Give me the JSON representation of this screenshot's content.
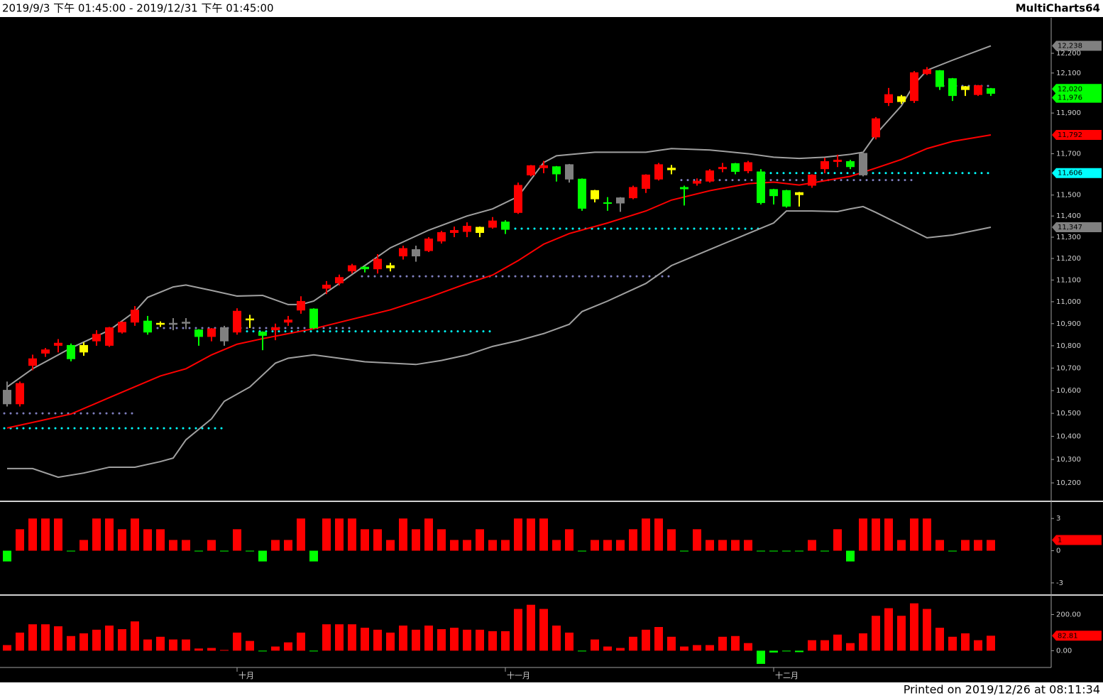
{
  "header": {
    "range": "2019/9/3 下午 01:45:00 - 2019/12/31 下午 01:45:00",
    "brand": "MultiCharts64"
  },
  "footer": "Printed on 2019/12/26 at 08:11:34",
  "chart_data": [
    {
      "type": "candlestick",
      "log_scale": true,
      "categories": [
        null,
        null,
        null,
        null,
        null,
        null,
        null,
        null,
        null,
        null,
        null,
        null,
        null,
        null,
        null,
        null,
        null,
        null,
        "十月",
        null,
        null,
        null,
        null,
        null,
        null,
        null,
        null,
        null,
        null,
        null,
        null,
        null,
        null,
        null,
        null,
        null,
        null,
        null,
        null,
        "十一月",
        null,
        null,
        null,
        null,
        null,
        null,
        null,
        null,
        null,
        null,
        null,
        null,
        null,
        null,
        null,
        null,
        null,
        null,
        null,
        null,
        "十二月",
        null,
        null,
        null,
        null,
        null,
        null,
        null,
        null,
        null,
        null,
        null,
        null,
        null,
        null,
        null,
        null,
        null
      ],
      "open": [
        10540,
        10540,
        10710,
        10765,
        10800,
        10800,
        10770,
        10820,
        10800,
        10860,
        10905,
        10910,
        10895,
        10900,
        10905,
        10870,
        10840,
        10820,
        10860,
        10915,
        10860,
        10870,
        10905,
        10960,
        10965,
        11060,
        11085,
        11140,
        11158,
        11150,
        11155,
        11210,
        11210,
        11235,
        11280,
        11320,
        11325,
        11320,
        11345,
        11370,
        11415,
        11595,
        11630,
        11635,
        11645,
        11575,
        11520,
        11462,
        11460,
        11485,
        11530,
        11575,
        11620,
        11535,
        11555,
        11565,
        11625,
        11650,
        11615,
        11610,
        11525,
        11520,
        11500,
        11545,
        11625,
        11660,
        11660,
        11700,
        11780,
        11950,
        11955,
        11960,
        12095,
        12110,
        12070,
        12015,
        11990,
        12020
      ],
      "high": [
        10640,
        10640,
        10760,
        10790,
        10830,
        10810,
        10815,
        10870,
        10885,
        10910,
        10980,
        10935,
        10910,
        10925,
        10925,
        10875,
        10880,
        10890,
        10970,
        10940,
        10865,
        10900,
        10935,
        11025,
        10970,
        11095,
        11125,
        11175,
        11165,
        11220,
        11180,
        11260,
        11260,
        11300,
        11330,
        11350,
        11370,
        11350,
        11395,
        11380,
        11560,
        11645,
        11665,
        11640,
        11650,
        11580,
        11525,
        11490,
        11490,
        11545,
        11600,
        11655,
        11645,
        11545,
        11580,
        11625,
        11655,
        11655,
        11665,
        11625,
        11530,
        11525,
        11515,
        11600,
        11680,
        11695,
        11670,
        11710,
        11880,
        12025,
        11990,
        12110,
        12130,
        12115,
        12075,
        12035,
        12040,
        12025
      ],
      "low": [
        10530,
        10530,
        10690,
        10750,
        10770,
        10730,
        10755,
        10800,
        10795,
        10855,
        10890,
        10850,
        10885,
        10870,
        10875,
        10800,
        10820,
        10800,
        10850,
        10880,
        10780,
        10825,
        10890,
        10945,
        10875,
        11035,
        11075,
        11130,
        11135,
        11130,
        11140,
        11195,
        11185,
        11230,
        11270,
        11300,
        11300,
        11300,
        11340,
        11315,
        11410,
        11590,
        11605,
        11565,
        11560,
        11425,
        11465,
        11425,
        11420,
        11480,
        11510,
        11570,
        11600,
        11450,
        11545,
        11560,
        11610,
        11600,
        11605,
        11455,
        11455,
        11440,
        11445,
        11535,
        11605,
        11635,
        11625,
        11590,
        11770,
        11935,
        11945,
        11950,
        12090,
        12015,
        11960,
        11985,
        11985,
        11985
      ],
      "close": [
        10600,
        10630,
        10740,
        10780,
        10810,
        10740,
        10800,
        10850,
        10880,
        10905,
        10960,
        10860,
        10900,
        10895,
        10900,
        10840,
        10875,
        10880,
        10955,
        10920,
        10845,
        10880,
        10915,
        11000,
        10880,
        11075,
        11110,
        11165,
        11150,
        11195,
        11165,
        11245,
        11240,
        11290,
        11320,
        11330,
        11350,
        11345,
        11375,
        11335,
        11545,
        11640,
        11640,
        11600,
        11575,
        11435,
        11480,
        11458,
        11485,
        11535,
        11595,
        11645,
        11628,
        11528,
        11565,
        11615,
        11632,
        11612,
        11655,
        11462,
        11495,
        11445,
        11510,
        11595,
        11660,
        11667,
        11635,
        11595,
        11870,
        11990,
        11980,
        12100,
        12115,
        12030,
        11985,
        12030,
        12035,
        11996
      ],
      "candle_colors": [
        "#808080",
        "#ff0000",
        "#ff0000",
        "#ff0000",
        "#ff0000",
        "#00ff00",
        "#ffff00",
        "#ff0000",
        "#ff0000",
        "#ff0000",
        "#ff0000",
        "#00ff00",
        "#ffff00",
        "#808080",
        "#808080",
        "#00ff00",
        "#ff0000",
        "#808080",
        "#ff0000",
        "#ffff00",
        "#00ff00",
        "#ff0000",
        "#ff0000",
        "#ff0000",
        "#00ff00",
        "#ff0000",
        "#ff0000",
        "#ff0000",
        "#00ff00",
        "#ff0000",
        "#ffff00",
        "#ff0000",
        "#808080",
        "#ff0000",
        "#ff0000",
        "#ff0000",
        "#ff0000",
        "#ffff00",
        "#ff0000",
        "#00ff00",
        "#ff0000",
        "#ff0000",
        "#ff0000",
        "#00ff00",
        "#808080",
        "#00ff00",
        "#ffff00",
        "#00ff00",
        "#808080",
        "#ff0000",
        "#ff0000",
        "#ff0000",
        "#ffff00",
        "#00ff00",
        "#ff0000",
        "#ff0000",
        "#ff0000",
        "#00ff00",
        "#ff0000",
        "#00ff00",
        "#00ff00",
        "#00ff00",
        "#ffff00",
        "#ff0000",
        "#ff0000",
        "#ff0000",
        "#00ff00",
        "#808080",
        "#ff0000",
        "#ff0000",
        "#ffff00",
        "#ff0000",
        "#ff0000",
        "#00ff00",
        "#00ff00",
        "#ffff00",
        "#ff0000",
        "#00ff00"
      ],
      "ylim": [
        10131,
        12382
      ],
      "yticks": [
        {
          "value": 12200,
          "label": "12,200"
        },
        {
          "value": 12100,
          "label": "12,100"
        },
        {
          "value": 11900,
          "label": "11,900"
        },
        {
          "value": 11700,
          "label": "11,700"
        },
        {
          "value": 11500,
          "label": "11,500"
        },
        {
          "value": 11400,
          "label": "11,400"
        },
        {
          "value": 11300,
          "label": "11,300"
        },
        {
          "value": 11200,
          "label": "11,200"
        },
        {
          "value": 11100,
          "label": "11,100"
        },
        {
          "value": 11000,
          "label": "11,000"
        },
        {
          "value": 10900,
          "label": "10,900"
        },
        {
          "value": 10800,
          "label": "10,800"
        },
        {
          "value": 10700,
          "label": "10,700"
        },
        {
          "value": 10600,
          "label": "10,600"
        },
        {
          "value": 10500,
          "label": "10,500"
        },
        {
          "value": 10400,
          "label": "10,400"
        },
        {
          "value": 10300,
          "label": "10,300"
        },
        {
          "value": 10200,
          "label": "10,200"
        }
      ],
      "lines": [
        {
          "color": "#a0a0a0",
          "x": [
            0,
            2,
            5,
            8,
            10,
            11,
            13,
            14,
            16,
            18,
            20,
            22,
            23,
            24,
            26,
            28,
            30,
            33,
            36,
            38,
            40,
            42,
            43,
            46,
            50,
            52,
            55,
            58,
            60,
            62,
            64,
            66,
            67,
            68,
            70,
            71,
            72,
            74,
            77
          ],
          "values": [
            10616,
            10697,
            10790,
            10870,
            10955,
            11020,
            11068,
            11077,
            11052,
            11026,
            11029,
            10987,
            10987,
            11003,
            11084,
            11167,
            11250,
            11333,
            11400,
            11434,
            11493,
            11657,
            11690,
            11707,
            11707,
            11725,
            11718,
            11700,
            11683,
            11677,
            11683,
            11697,
            11707,
            11795,
            11936,
            12043,
            12114,
            12165,
            12238
          ]
        },
        {
          "color": "#ff0000",
          "x": [
            0,
            5,
            8,
            12,
            14,
            16,
            18,
            20,
            24,
            27,
            30,
            33,
            36,
            38,
            40,
            42,
            44,
            47,
            50,
            52,
            55,
            58,
            60,
            62,
            64,
            66,
            68,
            70,
            72,
            74,
            77
          ],
          "values": [
            10436,
            10497,
            10569,
            10665,
            10697,
            10759,
            10807,
            10832,
            10877,
            10920,
            10963,
            11020,
            11084,
            11123,
            11190,
            11267,
            11317,
            11367,
            11424,
            11476,
            11521,
            11555,
            11562,
            11548,
            11569,
            11590,
            11630,
            11672,
            11725,
            11760,
            11792
          ]
        },
        {
          "color": "#a0a0a0",
          "x": [
            0,
            2,
            4,
            6,
            8,
            10,
            12,
            13,
            14,
            16,
            17,
            19,
            21,
            22,
            24,
            26,
            28,
            32,
            34,
            36,
            38,
            40,
            42,
            44,
            45,
            47,
            50,
            52,
            54,
            56,
            58,
            60,
            61,
            63,
            65,
            66,
            67,
            68,
            70,
            72,
            74,
            77
          ],
          "values": [
            10261,
            10261,
            10224,
            10242,
            10267,
            10267,
            10291,
            10306,
            10385,
            10476,
            10553,
            10616,
            10722,
            10744,
            10759,
            10744,
            10728,
            10716,
            10734,
            10759,
            10797,
            10823,
            10855,
            10897,
            10955,
            11003,
            11084,
            11167,
            11217,
            11267,
            11317,
            11367,
            11424,
            11424,
            11421,
            11434,
            11445,
            11417,
            11357,
            11297,
            11310,
            11347
          ]
        }
      ],
      "levels": [
        {
          "from": 0,
          "to": 10,
          "value": 10500,
          "color": "#8080c0"
        },
        {
          "from": 0,
          "to": 17,
          "value": 10435,
          "color": "#00ffff"
        },
        {
          "from": 12,
          "to": 27,
          "value": 10880,
          "color": "#8080c0"
        },
        {
          "from": 19,
          "to": 38,
          "value": 10865,
          "color": "#00ffff"
        },
        {
          "from": 28,
          "to": 52,
          "value": 11117,
          "color": "#8080c0"
        },
        {
          "from": 40,
          "to": 59,
          "value": 11340,
          "color": "#00ffff"
        },
        {
          "from": 53,
          "to": 71,
          "value": 11572,
          "color": "#8080c0"
        },
        {
          "from": 59,
          "to": 77,
          "value": 11606,
          "color": "#00ffff"
        },
        {
          "from": 73,
          "to": 77,
          "value": 12035,
          "color": "#8080c0"
        }
      ],
      "markers": [
        {
          "value": 12238,
          "label": "12,238",
          "color": "#808080"
        },
        {
          "value": 12020,
          "label": "12,020",
          "color": "#00ff00"
        },
        {
          "value": 11976,
          "label": "11,976",
          "color": "#00ff00"
        },
        {
          "value": 11792,
          "label": "11,792",
          "color": "#ff0000"
        },
        {
          "value": 11606,
          "label": "11,606",
          "color": "#00ffff"
        },
        {
          "value": 11347,
          "label": "11,347",
          "color": "#808080"
        }
      ]
    },
    {
      "type": "bar",
      "values": [
        -1,
        2,
        3,
        3,
        3,
        0,
        1,
        3,
        3,
        2,
        3,
        2,
        2,
        1,
        1,
        0,
        1,
        0,
        2,
        0,
        -1,
        1,
        1,
        3,
        -1,
        3,
        3,
        3,
        2,
        2,
        1,
        3,
        2,
        3,
        2,
        1,
        1,
        2,
        1,
        1,
        3,
        3,
        3,
        1,
        2,
        0,
        1,
        1,
        1,
        2,
        3,
        3,
        2,
        0,
        2,
        1,
        1,
        1,
        1,
        0,
        0,
        0,
        0,
        1,
        0,
        2,
        -1,
        3,
        3,
        3,
        1,
        3,
        3,
        1,
        0,
        1,
        1,
        1
      ],
      "up_color": "#ff0000",
      "down_color": "#00ff00",
      "ylim": [
        -4,
        4.47
      ],
      "yticks": [
        3,
        0,
        -3
      ],
      "markers": [
        {
          "value": 1,
          "color": "#ff0000"
        }
      ]
    },
    {
      "type": "bar",
      "values": [
        31,
        100,
        146,
        146,
        135,
        81,
        96,
        116,
        139,
        119,
        162,
        62,
        77,
        62,
        62,
        12,
        15,
        4,
        100,
        54,
        0,
        23,
        46,
        100,
        -2,
        146,
        146,
        146,
        127,
        116,
        100,
        139,
        116,
        139,
        119,
        127,
        116,
        116,
        108,
        108,
        231,
        254,
        231,
        139,
        100,
        -2,
        62,
        23,
        15,
        77,
        116,
        131,
        77,
        23,
        31,
        31,
        77,
        81,
        42,
        -73,
        -10,
        -3,
        -8,
        58,
        58,
        89,
        42,
        96,
        193,
        235,
        193,
        262,
        231,
        127,
        77,
        96,
        58,
        82.81
      ],
      "up_color": "#ff0000",
      "down_color": "#00ff00",
      "ylim": [
        -85,
        300
      ],
      "yticks": [
        {
          "value": 200,
          "label": "200.00"
        },
        {
          "value": 0,
          "label": "0.00"
        }
      ],
      "markers": [
        {
          "value": 82.81,
          "label": "82.81",
          "color": "#ff0000"
        }
      ]
    }
  ]
}
